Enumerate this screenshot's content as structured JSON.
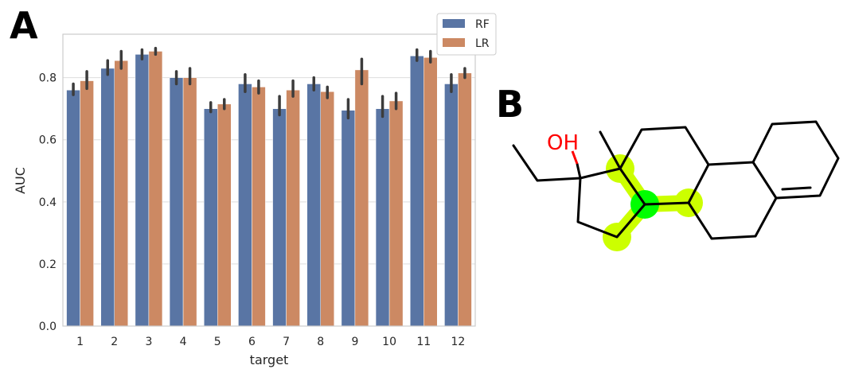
{
  "panel_labels": {
    "a": "A",
    "b": "B"
  },
  "chart_data": {
    "type": "bar",
    "xlabel": "target",
    "ylabel": "AUC",
    "ylim": [
      0,
      0.94
    ],
    "yticks": [
      "0.0",
      "0.2",
      "0.4",
      "0.6",
      "0.8"
    ],
    "grid": true,
    "legend_position": "top-right",
    "categories": [
      "1",
      "2",
      "3",
      "4",
      "5",
      "6",
      "7",
      "8",
      "9",
      "10",
      "11",
      "12"
    ],
    "series": [
      {
        "name": "RF",
        "color": "#5975a4",
        "values": [
          0.76,
          0.83,
          0.875,
          0.8,
          0.7,
          0.78,
          0.7,
          0.78,
          0.695,
          0.7,
          0.87,
          0.78
        ],
        "err_low": [
          0.745,
          0.81,
          0.86,
          0.78,
          0.69,
          0.755,
          0.68,
          0.76,
          0.67,
          0.675,
          0.855,
          0.755
        ],
        "err_high": [
          0.78,
          0.855,
          0.89,
          0.82,
          0.72,
          0.81,
          0.74,
          0.8,
          0.73,
          0.74,
          0.89,
          0.81
        ]
      },
      {
        "name": "LR",
        "color": "#cc8963",
        "values": [
          0.79,
          0.855,
          0.885,
          0.8,
          0.715,
          0.77,
          0.76,
          0.755,
          0.825,
          0.725,
          0.865,
          0.815
        ],
        "err_low": [
          0.765,
          0.83,
          0.875,
          0.78,
          0.7,
          0.75,
          0.74,
          0.735,
          0.78,
          0.7,
          0.85,
          0.8
        ],
        "err_high": [
          0.82,
          0.885,
          0.895,
          0.83,
          0.73,
          0.79,
          0.79,
          0.77,
          0.86,
          0.75,
          0.885,
          0.83
        ]
      }
    ]
  },
  "molecule": {
    "oh_label": "OH",
    "oh_color": "#ff0000",
    "bond_color": "#000000",
    "highlight_color": "#ccff00",
    "center_atom_color": "#00ff00"
  }
}
